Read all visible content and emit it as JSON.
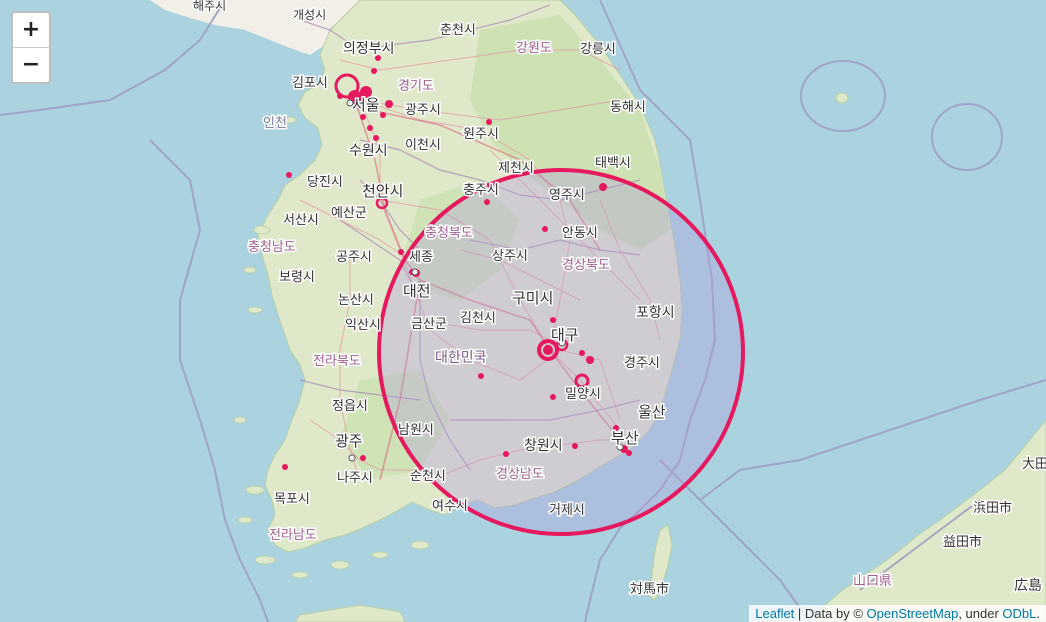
{
  "zoom": {
    "in_label": "+",
    "out_label": "−"
  },
  "attribution": {
    "leaflet": "Leaflet",
    "sep1": " | Data by © ",
    "osm": "OpenStreetMap",
    "sep2": ", under ",
    "odbl": "ODbL",
    "end": "."
  },
  "labels": {
    "haeju": "해주시",
    "gaeseong": "개성시",
    "chuncheon": "춘천시",
    "uijeongbu": "의정부시",
    "gangwon": "강원도",
    "gangneung": "강릉시",
    "gimpo": "김포시",
    "gyeonggi": "경기도",
    "seoul": "서울",
    "gwangju_gg": "광주시",
    "donghae": "동해시",
    "incheon": "인천",
    "wonju": "원주시",
    "icheon": "이천시",
    "suwon": "수원시",
    "jecheon": "제천시",
    "taebaek": "태백시",
    "dangjin": "당진시",
    "cheonan": "천안시",
    "chungju": "충주시",
    "yeongju": "영주시",
    "seosan": "서산시",
    "yesan": "예산군",
    "chungbuk": "충청북도",
    "andong": "안동시",
    "chungnam": "충청남도",
    "gongju": "공주시",
    "sejong": "세종",
    "sangju": "상주시",
    "gyeongbuk": "경상북도",
    "boryeong": "보령시",
    "daejeon": "대전",
    "gumi": "구미시",
    "nonsan": "논산시",
    "pohang": "포항시",
    "iksan": "익산시",
    "geumsan": "금산군",
    "gimcheon": "김천시",
    "daegu": "대구",
    "korea": "대한민국",
    "jeonbuk": "전라북도",
    "gyeongju": "경주시",
    "miryang": "밀양시",
    "jeongeup": "정읍시",
    "ulsan": "울산",
    "namwon": "남원시",
    "gwangju": "광주",
    "changwon": "창원시",
    "busan": "부산",
    "naju": "나주시",
    "suncheon": "순천시",
    "gyeongnam": "경상남도",
    "mokpo": "목포시",
    "yeosu": "여수시",
    "geoje": "거제시",
    "jeonnam": "전라남도",
    "tsushima": "対馬市",
    "yamaguchi": "山口県",
    "hamada": "浜田市",
    "masuda": "益田市",
    "hiroshima": "広島",
    "oda": "大田"
  }
}
